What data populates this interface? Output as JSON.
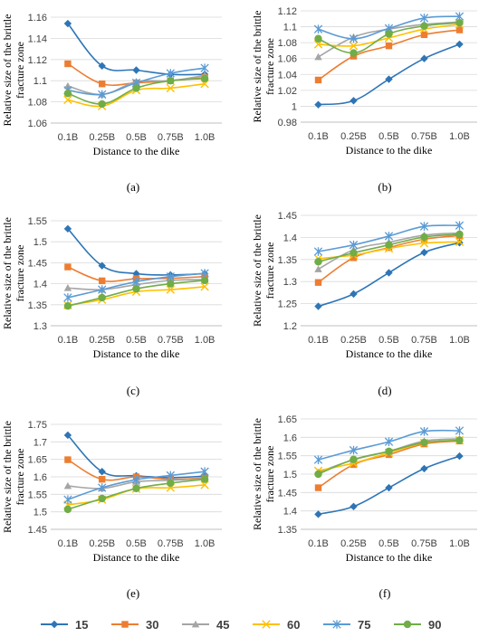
{
  "legend": {
    "placement": "bottom",
    "entries": [
      {
        "name": "15",
        "color": "#2E75B6",
        "marker": "diamond"
      },
      {
        "name": "30",
        "color": "#ED7D31",
        "marker": "square"
      },
      {
        "name": "45",
        "color": "#A5A5A5",
        "marker": "triangle"
      },
      {
        "name": "60",
        "color": "#FFC000",
        "marker": "x"
      },
      {
        "name": "75",
        "color": "#5B9BD5",
        "marker": "star"
      },
      {
        "name": "90",
        "color": "#70AD47",
        "marker": "circle"
      }
    ]
  },
  "chart_data": [
    {
      "type": "line",
      "panel_label": "(a)",
      "ylabel_lines": [
        "Relative size of the brittle",
        "fracture zone"
      ],
      "xlabel": "Distance to the dike",
      "categories": [
        "0.1B",
        "0.25B",
        "0.5B",
        "0.75B",
        "1.0B"
      ],
      "ylim": [
        1.06,
        1.16
      ],
      "yticks": [
        "1.06",
        "1.08",
        "1.1",
        "1.12",
        "1.14",
        "1.16"
      ],
      "grid": "horizontal",
      "series": [
        {
          "name": "15",
          "values": [
            1.154,
            1.114,
            1.11,
            1.106,
            1.106
          ]
        },
        {
          "name": "30",
          "values": [
            1.116,
            1.097,
            1.098,
            1.1,
            1.103
          ]
        },
        {
          "name": "45",
          "values": [
            1.095,
            1.087,
            1.099,
            1.1,
            1.105
          ]
        },
        {
          "name": "60",
          "values": [
            1.082,
            1.076,
            1.091,
            1.093,
            1.097
          ]
        },
        {
          "name": "75",
          "values": [
            1.091,
            1.087,
            1.098,
            1.107,
            1.112
          ]
        },
        {
          "name": "90",
          "values": [
            1.088,
            1.078,
            1.093,
            1.1,
            1.102
          ]
        }
      ]
    },
    {
      "type": "line",
      "panel_label": "(b)",
      "ylabel_lines": [
        "Relative size of the brittle",
        "fracture zone"
      ],
      "xlabel": "Distance to the dike",
      "categories": [
        "0.1B",
        "0.25B",
        "0.5B",
        "0.75B",
        "1.0B"
      ],
      "ylim": [
        0.98,
        1.12
      ],
      "yticks": [
        "0.98",
        "1",
        "1.02",
        "1.04",
        "1.06",
        "1.08",
        "1.1",
        "1.12"
      ],
      "grid": "horizontal",
      "series": [
        {
          "name": "15",
          "values": [
            1.002,
            1.007,
            1.034,
            1.06,
            1.078
          ]
        },
        {
          "name": "30",
          "values": [
            1.033,
            1.063,
            1.076,
            1.09,
            1.096
          ]
        },
        {
          "name": "45",
          "values": [
            1.062,
            1.087,
            1.097,
            1.103,
            1.106
          ]
        },
        {
          "name": "60",
          "values": [
            1.078,
            1.076,
            1.086,
            1.097,
            1.103
          ]
        },
        {
          "name": "75",
          "values": [
            1.097,
            1.085,
            1.098,
            1.111,
            1.113
          ]
        },
        {
          "name": "90",
          "values": [
            1.085,
            1.067,
            1.091,
            1.101,
            1.105
          ]
        }
      ]
    },
    {
      "type": "line",
      "panel_label": "(c)",
      "ylabel_lines": [
        "Relative size of the brittle",
        "fracture zone"
      ],
      "xlabel": "Distance to the dike",
      "categories": [
        "0.1B",
        "0.25B",
        "0.5B",
        "0.75B",
        "1.0B"
      ],
      "ylim": [
        1.3,
        1.55
      ],
      "yticks": [
        "1.3",
        "1.35",
        "1.4",
        "1.45",
        "1.5",
        "1.55"
      ],
      "grid": "horizontal",
      "series": [
        {
          "name": "15",
          "values": [
            1.531,
            1.443,
            1.424,
            1.421,
            1.424
          ]
        },
        {
          "name": "30",
          "values": [
            1.44,
            1.407,
            1.412,
            1.413,
            1.417
          ]
        },
        {
          "name": "45",
          "values": [
            1.39,
            1.386,
            1.398,
            1.408,
            1.41
          ]
        },
        {
          "name": "60",
          "values": [
            1.349,
            1.362,
            1.381,
            1.386,
            1.393
          ]
        },
        {
          "name": "75",
          "values": [
            1.367,
            1.386,
            1.405,
            1.417,
            1.425
          ]
        },
        {
          "name": "90",
          "values": [
            1.347,
            1.367,
            1.388,
            1.4,
            1.408
          ]
        }
      ]
    },
    {
      "type": "line",
      "panel_label": "(d)",
      "ylabel_lines": [
        "Relative size of the brittle",
        "fracture zone"
      ],
      "xlabel": "Distance to the dike",
      "categories": [
        "0.1B",
        "0.25B",
        "0.5B",
        "0.75B",
        "1.0B"
      ],
      "ylim": [
        1.2,
        1.45
      ],
      "yticks": [
        "1.2",
        "1.25",
        "1.3",
        "1.35",
        "1.4",
        "1.45"
      ],
      "grid": "horizontal",
      "series": [
        {
          "name": "15",
          "values": [
            1.244,
            1.272,
            1.32,
            1.366,
            1.388
          ]
        },
        {
          "name": "30",
          "values": [
            1.298,
            1.354,
            1.377,
            1.396,
            1.404
          ]
        },
        {
          "name": "45",
          "values": [
            1.328,
            1.372,
            1.389,
            1.405,
            1.41
          ]
        },
        {
          "name": "60",
          "values": [
            1.352,
            1.36,
            1.375,
            1.387,
            1.39
          ]
        },
        {
          "name": "75",
          "values": [
            1.368,
            1.383,
            1.403,
            1.425,
            1.427
          ]
        },
        {
          "name": "90",
          "values": [
            1.345,
            1.365,
            1.383,
            1.401,
            1.407
          ]
        }
      ]
    },
    {
      "type": "line",
      "panel_label": "(e)",
      "ylabel_lines": [
        "Relative size of the brittle",
        "fracture zone"
      ],
      "xlabel": "Distance to the dike",
      "categories": [
        "0.1B",
        "0.25B",
        "0.5B",
        "0.75B",
        "1.0B"
      ],
      "ylim": [
        1.45,
        1.75
      ],
      "yticks": [
        "1.45",
        "1.5",
        "1.55",
        "1.6",
        "1.65",
        "1.7",
        "1.75"
      ],
      "grid": "horizontal",
      "series": [
        {
          "name": "15",
          "values": [
            1.719,
            1.615,
            1.603,
            1.598,
            1.602
          ]
        },
        {
          "name": "30",
          "values": [
            1.649,
            1.593,
            1.6,
            1.593,
            1.597
          ]
        },
        {
          "name": "45",
          "values": [
            1.574,
            1.567,
            1.586,
            1.59,
            1.595
          ]
        },
        {
          "name": "60",
          "values": [
            1.52,
            1.535,
            1.566,
            1.569,
            1.577
          ]
        },
        {
          "name": "75",
          "values": [
            1.535,
            1.569,
            1.592,
            1.604,
            1.615
          ]
        },
        {
          "name": "90",
          "values": [
            1.507,
            1.538,
            1.567,
            1.582,
            1.593
          ]
        }
      ]
    },
    {
      "type": "line",
      "panel_label": "(f)",
      "ylabel_lines": [
        "Relative size of the brittle",
        "fracture zone"
      ],
      "xlabel": "Distance to the dike",
      "categories": [
        "0.1B",
        "0.25B",
        "0.5B",
        "0.75B",
        "1.0B"
      ],
      "ylim": [
        1.35,
        1.65
      ],
      "yticks": [
        "1.35",
        "1.4",
        "1.45",
        "1.5",
        "1.55",
        "1.6",
        "1.65"
      ],
      "grid": "horizontal",
      "series": [
        {
          "name": "15",
          "values": [
            1.391,
            1.412,
            1.463,
            1.515,
            1.549
          ]
        },
        {
          "name": "30",
          "values": [
            1.463,
            1.526,
            1.553,
            1.582,
            1.59
          ]
        },
        {
          "name": "45",
          "values": [
            1.505,
            1.539,
            1.562,
            1.59,
            1.596
          ]
        },
        {
          "name": "60",
          "values": [
            1.509,
            1.53,
            1.558,
            1.585,
            1.592
          ]
        },
        {
          "name": "75",
          "values": [
            1.539,
            1.565,
            1.588,
            1.616,
            1.618
          ]
        },
        {
          "name": "90",
          "values": [
            1.5,
            1.54,
            1.562,
            1.586,
            1.592
          ]
        }
      ]
    }
  ]
}
